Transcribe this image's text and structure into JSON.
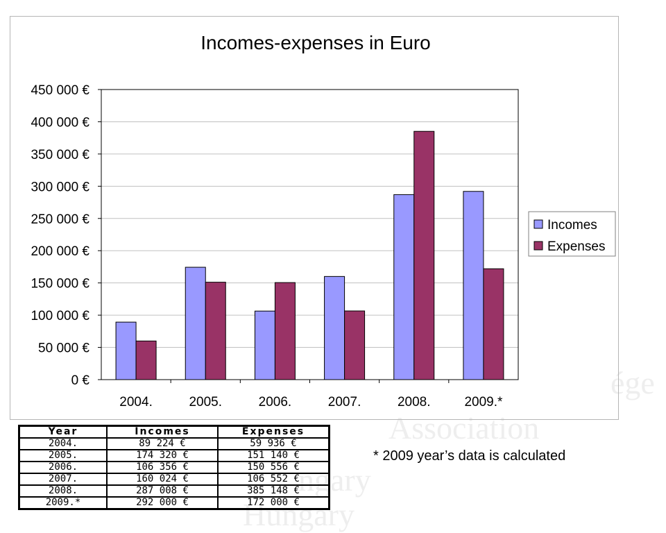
{
  "colors": {
    "incomes": "#9999ff",
    "expenses": "#993366",
    "grid": "#c0c0c0",
    "axis": "#000000"
  },
  "chart_data": {
    "type": "bar",
    "title": "Incomes-expenses in Euro",
    "categories": [
      "2004.",
      "2005.",
      "2006.",
      "2007.",
      "2008.",
      "2009.*"
    ],
    "series": [
      {
        "name": "Incomes",
        "values": [
          89224,
          174320,
          106356,
          160024,
          287008,
          292000
        ]
      },
      {
        "name": "Expenses",
        "values": [
          59936,
          151140,
          150556,
          106552,
          385148,
          172000
        ]
      }
    ],
    "ylim": [
      0,
      450000
    ],
    "yticks": [
      0,
      50000,
      100000,
      150000,
      200000,
      250000,
      300000,
      350000,
      400000,
      450000
    ],
    "ytick_labels": [
      "0 €",
      "50 000 €",
      "100 000 €",
      "150 000 €",
      "200 000 €",
      "250 000 €",
      "300 000 €",
      "350 000 €",
      "400 000 €",
      "450 000 €"
    ],
    "xlabel": "",
    "ylabel": "",
    "grid": true,
    "legend_position": "right"
  },
  "table": {
    "headers": [
      "Year",
      "Incomes",
      "Expenses"
    ],
    "rows": [
      [
        "2004.",
        "89 224 €",
        "59 936 €"
      ],
      [
        "2005.",
        "174 320 €",
        "151 140 €"
      ],
      [
        "2006.",
        "106 356 €",
        "150 556 €"
      ],
      [
        "2007.",
        "160 024 €",
        "106 552 €"
      ],
      [
        "2008.",
        "287 008 €",
        "385 148 €"
      ],
      [
        "2009.*",
        "292 000 €",
        "172 000 €"
      ]
    ]
  },
  "footnote": "* 2009 year’s data is calculated"
}
